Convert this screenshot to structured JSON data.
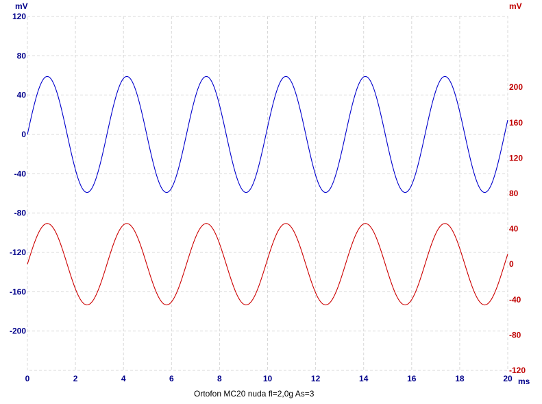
{
  "chart_data": {
    "type": "line",
    "title": "Ortofon MC20 nuda  fl=2,0g  As=3",
    "xlabel": "ms",
    "xlim": [
      0,
      20
    ],
    "x_ticks": [
      "0",
      "2",
      "4",
      "6",
      "8",
      "10",
      "12",
      "14",
      "16",
      "18",
      "20"
    ],
    "left_axis": {
      "unit": "mV",
      "ylim": [
        -240,
        120
      ],
      "ticks": [
        "120",
        "80",
        "40",
        "0",
        "-40",
        "-80",
        "-120",
        "-160",
        "-200"
      ],
      "color": "#00008B"
    },
    "right_axis": {
      "unit": "mV",
      "ylim": [
        -120,
        280
      ],
      "ticks": [
        "200",
        "160",
        "120",
        "80",
        "40",
        "0",
        "-40",
        "-80",
        "-120"
      ],
      "color": "#C00000"
    },
    "grid": true,
    "series": [
      {
        "axis": "left",
        "color": "#0000CC",
        "amplitude": 59,
        "offset": 0,
        "frequency_hz": 302,
        "phase_start": "zero-crossing-rising",
        "values_note_x_peaks_ms": [
          0.8,
          4.1,
          7.4,
          10.7,
          14.0,
          17.3
        ]
      },
      {
        "axis": "right",
        "color": "#CC0000",
        "amplitude": 46,
        "offset": 0,
        "frequency_hz": 302,
        "phase_start": "zero-crossing-rising",
        "values_note_x_peaks_ms": [
          0.8,
          4.1,
          7.4,
          10.7,
          14.0,
          17.3
        ]
      }
    ]
  }
}
